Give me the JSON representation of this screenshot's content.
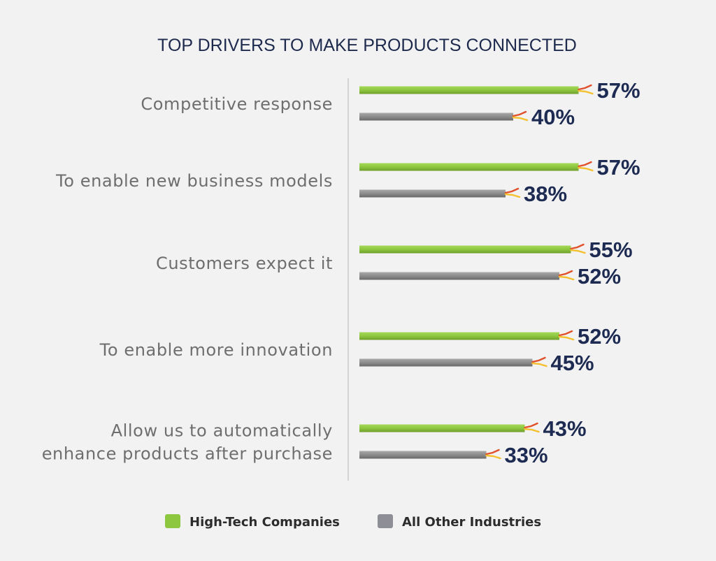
{
  "chart_data": {
    "type": "bar",
    "orientation": "horizontal",
    "title": "TOP DRIVERS TO MAKE PRODUCTS CONNECTED",
    "categories": [
      [
        "Competitive response"
      ],
      [
        "To enable new business models"
      ],
      [
        "Customers expect it"
      ],
      [
        "To enable more innovation"
      ],
      [
        "Allow us to automatically",
        "enhance products after purchase"
      ]
    ],
    "series": [
      {
        "name": "High-Tech Companies",
        "color": "#8dc63f",
        "values": [
          57,
          57,
          55,
          52,
          43
        ],
        "labels": [
          "57%",
          "57%",
          "55%",
          "52%",
          "43%"
        ]
      },
      {
        "name": "All Other Industries",
        "color": "#8c8c8c",
        "values": [
          40,
          38,
          52,
          45,
          33
        ],
        "labels": [
          "40%",
          "38%",
          "52%",
          "45%",
          "33%"
        ]
      }
    ],
    "xlim": [
      0,
      100
    ],
    "grid": false,
    "legend_position": "bottom-center",
    "accent_colors": {
      "wire_red": "#e0502a",
      "wire_yellow": "#f4c02e"
    }
  }
}
